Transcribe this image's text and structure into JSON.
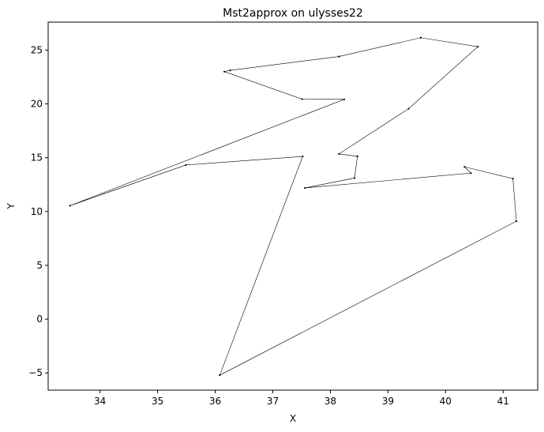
{
  "chart_data": {
    "type": "line",
    "title": "Mst2approx on ulysses22",
    "xlabel": "X",
    "ylabel": "Y",
    "xlim": [
      33.1,
      41.6
    ],
    "ylim": [
      -6.6,
      27.6
    ],
    "xticks": [
      34,
      35,
      36,
      37,
      38,
      39,
      40,
      41
    ],
    "yticks": [
      -5,
      0,
      5,
      10,
      15,
      20,
      25
    ],
    "grid": false,
    "line_color": "#000000",
    "series": [
      {
        "x": [
          38.24,
          39.57,
          40.56,
          36.26,
          33.48,
          37.56,
          38.42,
          37.52,
          41.23,
          41.17,
          36.08,
          38.47,
          38.15,
          37.51,
          35.49,
          36.26,
          36.16,
          40.44,
          40.33,
          38.15,
          39.36,
          38.47
        ],
        "y": [
          20.42,
          26.15,
          25.32,
          23.12,
          10.54,
          12.19,
          13.11,
          15.12,
          9.1,
          13.05,
          -5.21,
          15.13,
          15.35,
          20.44,
          14.32,
          23.12,
          23.0,
          13.57,
          14.15,
          24.4,
          19.56,
          15.13
        ],
        "order": [
          0,
          13,
          16,
          15,
          3,
          19,
          1,
          2,
          20,
          12,
          11,
          6,
          5,
          17,
          18,
          9,
          8,
          10,
          7,
          14,
          4,
          0
        ]
      }
    ]
  }
}
